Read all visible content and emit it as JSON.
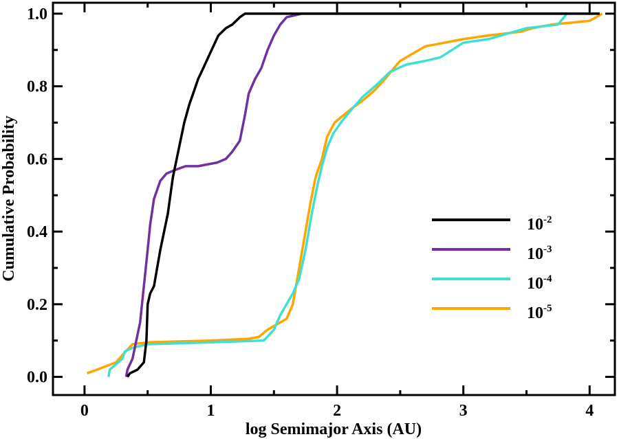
{
  "chart_data": {
    "type": "line",
    "title": "",
    "xlabel": "log Semimajor Axis (AU)",
    "ylabel": "Cumulative Probability",
    "xlim": [
      -0.25,
      4.2
    ],
    "ylim": [
      -0.05,
      1.03
    ],
    "xticks": [
      0,
      1,
      2,
      3,
      4
    ],
    "yticks": [
      0.0,
      0.2,
      0.4,
      0.6,
      0.8,
      1.0
    ],
    "xtick_labels": [
      "0",
      "1",
      "2",
      "3",
      "4"
    ],
    "ytick_labels": [
      "0.0",
      "0.2",
      "0.4",
      "0.6",
      "0.8",
      "1.0"
    ],
    "grid": false,
    "legend_position": "center-right",
    "series": [
      {
        "base": "10",
        "exponent": "-2",
        "color": "#000000",
        "points": [
          [
            0.34,
            0.0
          ],
          [
            0.36,
            0.01
          ],
          [
            0.42,
            0.02
          ],
          [
            0.47,
            0.04
          ],
          [
            0.49,
            0.1
          ],
          [
            0.5,
            0.2
          ],
          [
            0.52,
            0.23
          ],
          [
            0.55,
            0.25
          ],
          [
            0.58,
            0.31
          ],
          [
            0.6,
            0.35
          ],
          [
            0.63,
            0.4
          ],
          [
            0.66,
            0.45
          ],
          [
            0.68,
            0.5
          ],
          [
            0.7,
            0.55
          ],
          [
            0.73,
            0.6
          ],
          [
            0.76,
            0.65
          ],
          [
            0.79,
            0.7
          ],
          [
            0.83,
            0.75
          ],
          [
            0.87,
            0.79
          ],
          [
            0.9,
            0.82
          ],
          [
            0.94,
            0.85
          ],
          [
            0.98,
            0.88
          ],
          [
            1.02,
            0.91
          ],
          [
            1.06,
            0.94
          ],
          [
            1.12,
            0.96
          ],
          [
            1.17,
            0.97
          ],
          [
            1.23,
            0.99
          ],
          [
            1.27,
            1.0
          ],
          [
            4.08,
            1.0
          ]
        ]
      },
      {
        "base": "10",
        "exponent": "-3",
        "color": "#7030a0",
        "points": [
          [
            0.33,
            0.0
          ],
          [
            0.34,
            0.02
          ],
          [
            0.38,
            0.05
          ],
          [
            0.44,
            0.15
          ],
          [
            0.47,
            0.25
          ],
          [
            0.5,
            0.35
          ],
          [
            0.52,
            0.42
          ],
          [
            0.55,
            0.49
          ],
          [
            0.6,
            0.54
          ],
          [
            0.65,
            0.56
          ],
          [
            0.72,
            0.57
          ],
          [
            0.8,
            0.58
          ],
          [
            0.9,
            0.58
          ],
          [
            1.05,
            0.59
          ],
          [
            1.12,
            0.6
          ],
          [
            1.17,
            0.62
          ],
          [
            1.23,
            0.65
          ],
          [
            1.27,
            0.72
          ],
          [
            1.3,
            0.78
          ],
          [
            1.35,
            0.82
          ],
          [
            1.4,
            0.85
          ],
          [
            1.45,
            0.9
          ],
          [
            1.5,
            0.94
          ],
          [
            1.55,
            0.97
          ],
          [
            1.6,
            0.99
          ],
          [
            1.72,
            1.0
          ],
          [
            3.82,
            1.0
          ]
        ]
      },
      {
        "base": "10",
        "exponent": "-4",
        "color": "#40e0d0",
        "points": [
          [
            0.19,
            0.0
          ],
          [
            0.2,
            0.02
          ],
          [
            0.3,
            0.05
          ],
          [
            0.32,
            0.07
          ],
          [
            0.38,
            0.08
          ],
          [
            0.5,
            0.09
          ],
          [
            1.0,
            0.095
          ],
          [
            1.42,
            0.1
          ],
          [
            1.5,
            0.13
          ],
          [
            1.55,
            0.17
          ],
          [
            1.6,
            0.2
          ],
          [
            1.65,
            0.23
          ],
          [
            1.7,
            0.27
          ],
          [
            1.75,
            0.35
          ],
          [
            1.8,
            0.45
          ],
          [
            1.84,
            0.52
          ],
          [
            1.88,
            0.58
          ],
          [
            1.92,
            0.63
          ],
          [
            1.97,
            0.67
          ],
          [
            2.03,
            0.7
          ],
          [
            2.1,
            0.73
          ],
          [
            2.2,
            0.77
          ],
          [
            2.3,
            0.8
          ],
          [
            2.42,
            0.84
          ],
          [
            2.55,
            0.86
          ],
          [
            2.7,
            0.87
          ],
          [
            2.82,
            0.88
          ],
          [
            3.0,
            0.92
          ],
          [
            3.2,
            0.93
          ],
          [
            3.5,
            0.96
          ],
          [
            3.75,
            0.97
          ],
          [
            3.82,
            1.0
          ],
          [
            4.08,
            1.0
          ]
        ]
      },
      {
        "base": "10",
        "exponent": "-5",
        "color": "#ffa500",
        "points": [
          [
            0.02,
            0.01
          ],
          [
            0.1,
            0.02
          ],
          [
            0.25,
            0.04
          ],
          [
            0.3,
            0.06
          ],
          [
            0.38,
            0.09
          ],
          [
            0.5,
            0.095
          ],
          [
            1.0,
            0.1
          ],
          [
            1.3,
            0.105
          ],
          [
            1.38,
            0.11
          ],
          [
            1.45,
            0.13
          ],
          [
            1.55,
            0.15
          ],
          [
            1.6,
            0.16
          ],
          [
            1.65,
            0.2
          ],
          [
            1.7,
            0.3
          ],
          [
            1.75,
            0.4
          ],
          [
            1.79,
            0.48
          ],
          [
            1.83,
            0.55
          ],
          [
            1.88,
            0.6
          ],
          [
            1.92,
            0.66
          ],
          [
            1.98,
            0.7
          ],
          [
            2.05,
            0.72
          ],
          [
            2.12,
            0.74
          ],
          [
            2.2,
            0.76
          ],
          [
            2.3,
            0.79
          ],
          [
            2.38,
            0.82
          ],
          [
            2.45,
            0.85
          ],
          [
            2.5,
            0.87
          ],
          [
            2.6,
            0.89
          ],
          [
            2.7,
            0.91
          ],
          [
            2.85,
            0.92
          ],
          [
            3.0,
            0.93
          ],
          [
            3.2,
            0.94
          ],
          [
            3.45,
            0.95
          ],
          [
            3.55,
            0.96
          ],
          [
            3.7,
            0.97
          ],
          [
            4.0,
            0.98
          ],
          [
            4.1,
            1.0
          ]
        ]
      }
    ]
  }
}
